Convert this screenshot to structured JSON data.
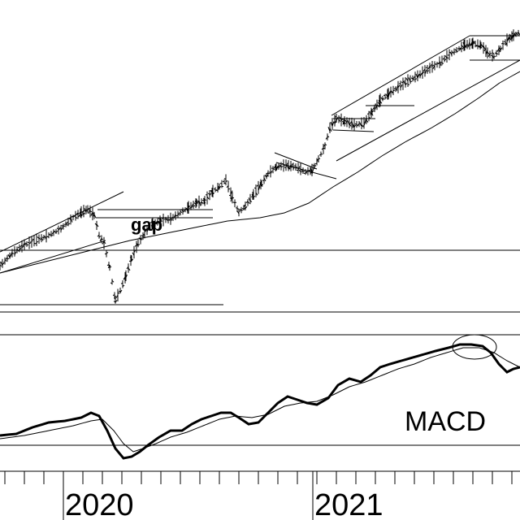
{
  "chart_data": [
    {
      "type": "line",
      "title": "",
      "panel": "price",
      "bar_style": "ohlc",
      "grid": false,
      "annotations": [
        {
          "kind": "label",
          "text": "gap"
        }
      ],
      "series": [
        {
          "style": "ohlc",
          "points": []
        },
        {
          "style": "moving-average",
          "values": []
        }
      ]
    },
    {
      "type": "line",
      "title": "",
      "panel": "indicator",
      "label": "MACD",
      "series": [
        {
          "style": "thick",
          "values": []
        },
        {
          "style": "thin",
          "values": []
        }
      ]
    }
  ],
  "x_axis": {
    "ticks": [
      "2020",
      "2021"
    ]
  },
  "colors": {
    "ink": "#000000",
    "background": "#ffffff"
  }
}
